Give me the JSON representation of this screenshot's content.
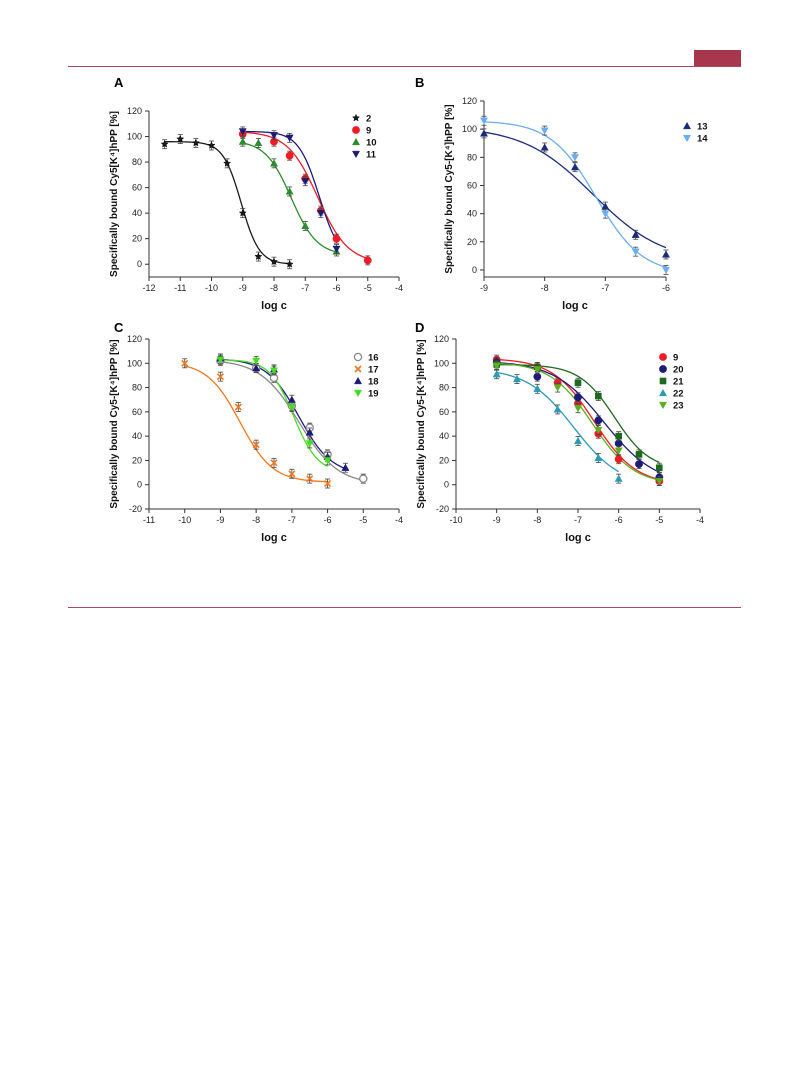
{
  "chart_data": [
    {
      "type": "scatter",
      "panel": "A",
      "xlabel": "log c",
      "ylabel": "Specifically bound Cy5[K⁴]hPP [%]",
      "xlim": [
        -12,
        -4
      ],
      "ylim": [
        -10,
        120
      ],
      "xticks": [
        -12,
        -11,
        -10,
        -9,
        -8,
        -7,
        -6,
        -5,
        -4
      ],
      "yticks": [
        0,
        20,
        40,
        60,
        80,
        100,
        120
      ],
      "legend_position": "top-right",
      "series": [
        {
          "name": "2",
          "color": "#1a1a1a",
          "marker": "star",
          "x": [
            -11.5,
            -11,
            -10.5,
            -10,
            -9.5,
            -9,
            -8.5,
            -8,
            -7.5
          ],
          "y": [
            94,
            98,
            95,
            93,
            79,
            40,
            6,
            2,
            0
          ],
          "fit": {
            "top": 96,
            "bottom": 0,
            "logEC50": -9.05,
            "hill": 1.5,
            "from": -11.5,
            "to": -7.5
          }
        },
        {
          "name": "9",
          "color": "#ee1c25",
          "marker": "circle",
          "x": [
            -9,
            -8,
            -7.5,
            -7,
            -6.5,
            -6,
            -5
          ],
          "y": [
            102,
            96,
            85,
            67,
            42,
            20,
            3
          ],
          "fit": {
            "top": 104,
            "bottom": 1,
            "logEC50": -6.6,
            "hill": 0.9,
            "from": -9,
            "to": -5
          }
        },
        {
          "name": "10",
          "color": "#2e8b2e",
          "marker": "triangle-up",
          "x": [
            -9,
            -8.5,
            -8,
            -7.5,
            -7,
            -6
          ],
          "y": [
            96,
            95,
            79,
            57,
            30,
            10
          ],
          "fit": {
            "top": 97,
            "bottom": 7,
            "logEC50": -7.45,
            "hill": 1.05,
            "from": -9,
            "to": -6
          }
        },
        {
          "name": "11",
          "color": "#1c1c78",
          "marker": "triangle-down",
          "x": [
            -9,
            -8,
            -7.5,
            -7,
            -6.5,
            -6
          ],
          "y": [
            104,
            101,
            99,
            65,
            40,
            12
          ],
          "fit": {
            "top": 104,
            "bottom": 2,
            "logEC50": -6.55,
            "hill": 1.3,
            "from": -9,
            "to": -6
          }
        }
      ]
    },
    {
      "type": "scatter",
      "panel": "B",
      "xlabel": "log c",
      "ylabel": "Specifically bound Cy5-[K⁴]hPP [%]",
      "xlim": [
        -9,
        -6
      ],
      "ylim": [
        -5,
        120
      ],
      "xticks": [
        -9,
        -8,
        -7,
        -6
      ],
      "yticks": [
        0,
        20,
        40,
        60,
        80,
        100,
        120
      ],
      "legend_position": "top-right",
      "series": [
        {
          "name": "13",
          "color": "#1c2a7a",
          "marker": "triangle-up",
          "x": [
            -9,
            -8,
            -7.5,
            -7,
            -6.5,
            -6
          ],
          "y": [
            97,
            87,
            73,
            45,
            25,
            11
          ],
          "fit": {
            "top": 102,
            "bottom": 5,
            "logEC50": -7.2,
            "hill": 0.75,
            "from": -9,
            "to": -6
          }
        },
        {
          "name": "14",
          "color": "#6aaef0",
          "marker": "triangle-down",
          "x": [
            -9,
            -8,
            -7.5,
            -7,
            -6.5,
            -6
          ],
          "y": [
            106,
            99,
            80,
            40,
            13,
            0
          ],
          "fit": {
            "top": 106,
            "bottom": -3,
            "logEC50": -7.15,
            "hill": 1.15,
            "from": -9,
            "to": -6
          }
        }
      ]
    },
    {
      "type": "scatter",
      "panel": "C",
      "xlabel": "log c",
      "ylabel": "Specifically bound Cy5-[K⁴]hPP [%]",
      "xlim": [
        -11,
        -4
      ],
      "ylim": [
        -20,
        120
      ],
      "xticks": [
        -11,
        -10,
        -9,
        -8,
        -7,
        -6,
        -5,
        -4
      ],
      "yticks": [
        -20,
        0,
        20,
        40,
        60,
        80,
        100,
        120
      ],
      "legend_position": "top-right",
      "series": [
        {
          "name": "16",
          "color": "#888888",
          "marker": "circle-open",
          "x": [
            -9,
            -8,
            -7.5,
            -7,
            -6.5,
            -6,
            -5
          ],
          "y": [
            102,
            96,
            88,
            65,
            47,
            25,
            5
          ],
          "fit": {
            "top": 103,
            "bottom": 0,
            "logEC50": -6.8,
            "hill": 0.8,
            "from": -9,
            "to": -5
          }
        },
        {
          "name": "17",
          "color": "#f07820",
          "marker": "x",
          "x": [
            -10,
            -9,
            -8.5,
            -8,
            -7.5,
            -7,
            -6.5,
            -6
          ],
          "y": [
            100,
            89,
            64,
            33,
            18,
            9,
            5,
            1
          ],
          "fit": {
            "top": 101,
            "bottom": 2,
            "logEC50": -8.45,
            "hill": 0.95,
            "from": -10,
            "to": -6
          }
        },
        {
          "name": "18",
          "color": "#1c1c78",
          "marker": "triangle-up",
          "x": [
            -9,
            -8,
            -7.5,
            -7,
            -6.5,
            -6,
            -5.5
          ],
          "y": [
            104,
            96,
            95,
            70,
            43,
            23,
            14
          ],
          "fit": {
            "top": 104,
            "bottom": 8,
            "logEC50": -6.8,
            "hill": 0.95,
            "from": -9,
            "to": -5.5
          }
        },
        {
          "name": "19",
          "color": "#44dd22",
          "marker": "triangle-down",
          "x": [
            -9,
            -8,
            -7.5,
            -7,
            -6.5,
            -6
          ],
          "y": [
            103,
            102,
            94,
            64,
            34,
            20
          ],
          "fit": {
            "top": 103,
            "bottom": 10,
            "logEC50": -6.95,
            "hill": 1.3,
            "from": -9,
            "to": -6
          }
        }
      ]
    },
    {
      "type": "scatter",
      "panel": "D",
      "xlabel": "log c",
      "ylabel": "Specifically bound Cy5-[K⁴]hPP [%]",
      "xlim": [
        -10,
        -4
      ],
      "ylim": [
        -20,
        120
      ],
      "xticks": [
        -10,
        -9,
        -8,
        -7,
        -6,
        -5,
        -4
      ],
      "yticks": [
        -20,
        0,
        20,
        40,
        60,
        80,
        100,
        120
      ],
      "legend_position": "top-right",
      "series": [
        {
          "name": "9",
          "color": "#ee1c25",
          "marker": "circle",
          "x": [
            -9,
            -8,
            -7.5,
            -7,
            -6.5,
            -6,
            -5
          ],
          "y": [
            103,
            97,
            84,
            67,
            42,
            21,
            3
          ],
          "fit": {
            "top": 104,
            "bottom": 0,
            "logEC50": -6.6,
            "hill": 0.85,
            "from": -9,
            "to": -5
          }
        },
        {
          "name": "20",
          "color": "#1c1c78",
          "marker": "circle",
          "x": [
            -9,
            -8,
            -7,
            -6.5,
            -6,
            -5.5,
            -5
          ],
          "y": [
            101,
            89,
            72,
            53,
            34,
            17,
            6
          ],
          "fit": {
            "top": 102,
            "bottom": 0,
            "logEC50": -6.35,
            "hill": 0.7,
            "from": -9,
            "to": -5
          }
        },
        {
          "name": "21",
          "color": "#1e6b1e",
          "marker": "square",
          "x": [
            -9,
            -8,
            -7,
            -6.5,
            -6,
            -5.5,
            -5
          ],
          "y": [
            99,
            97,
            84,
            73,
            40,
            25,
            14
          ],
          "fit": {
            "top": 99,
            "bottom": 12,
            "logEC50": -6.1,
            "hill": 1.0,
            "from": -9,
            "to": -5
          }
        },
        {
          "name": "22",
          "color": "#2a9ab5",
          "marker": "triangle-up",
          "x": [
            -9,
            -8.5,
            -8,
            -7.5,
            -7,
            -6.5,
            -6
          ],
          "y": [
            91,
            87,
            79,
            62,
            36,
            22,
            5
          ],
          "fit": {
            "top": 96,
            "bottom": -2,
            "logEC50": -7.1,
            "hill": 0.75,
            "from": -9,
            "to": -6
          }
        },
        {
          "name": "23",
          "color": "#5ab020",
          "marker": "triangle-down",
          "x": [
            -9,
            -8,
            -7.5,
            -7,
            -6.5,
            -6,
            -5
          ],
          "y": [
            98,
            95,
            80,
            63,
            45,
            28,
            3
          ],
          "fit": {
            "top": 101,
            "bottom": 0,
            "logEC50": -6.65,
            "hill": 0.85,
            "from": -9,
            "to": -5
          }
        }
      ]
    }
  ]
}
